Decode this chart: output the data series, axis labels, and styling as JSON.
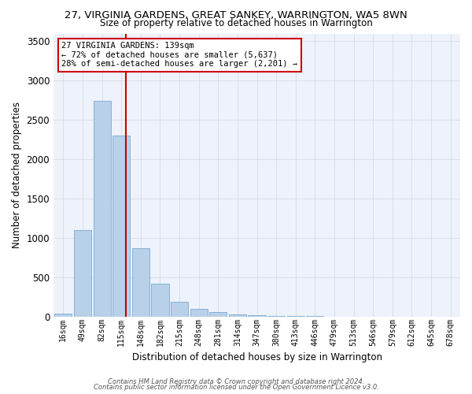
{
  "title": "27, VIRGINIA GARDENS, GREAT SANKEY, WARRINGTON, WA5 8WN",
  "subtitle": "Size of property relative to detached houses in Warrington",
  "xlabel": "Distribution of detached houses by size in Warrington",
  "ylabel": "Number of detached properties",
  "bar_labels": [
    "16sqm",
    "49sqm",
    "82sqm",
    "115sqm",
    "148sqm",
    "182sqm",
    "215sqm",
    "248sqm",
    "281sqm",
    "314sqm",
    "347sqm",
    "380sqm",
    "413sqm",
    "446sqm",
    "479sqm",
    "513sqm",
    "546sqm",
    "579sqm",
    "612sqm",
    "645sqm",
    "678sqm"
  ],
  "bar_values": [
    40,
    1100,
    2740,
    2300,
    870,
    420,
    190,
    100,
    60,
    35,
    20,
    15,
    10,
    8,
    5,
    4,
    3,
    2,
    2,
    1,
    1
  ],
  "bar_color": "#b8d0e8",
  "bar_edge_color": "#7aaad0",
  "background_color": "#eef2fa",
  "grid_color": "#d0d8e8",
  "ref_line_color": "#cc0000",
  "annotation_text": "27 VIRGINIA GARDENS: 139sqm\n← 72% of detached houses are smaller (5,637)\n28% of semi-detached houses are larger (2,201) →",
  "annotation_box_color": "#ffffff",
  "annotation_box_edge": "#cc0000",
  "ylim": [
    0,
    3600
  ],
  "yticks": [
    0,
    500,
    1000,
    1500,
    2000,
    2500,
    3000,
    3500
  ],
  "footer1": "Contains HM Land Registry data © Crown copyright and database right 2024.",
  "footer2": "Contains public sector information licensed under the Open Government Licence v3.0."
}
